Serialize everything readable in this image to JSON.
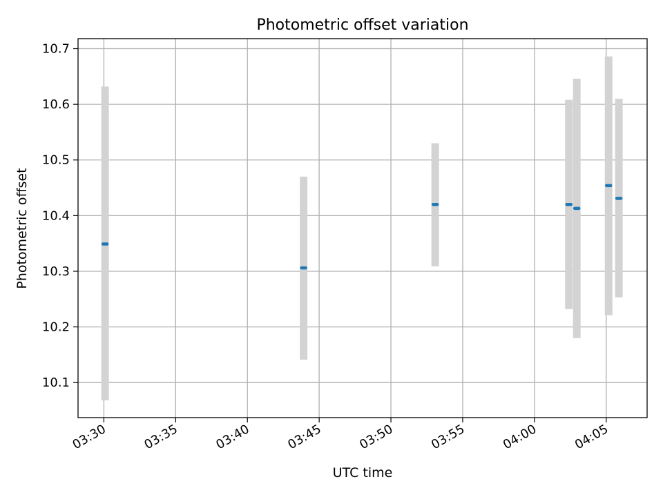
{
  "chart_data": {
    "type": "scatter",
    "title": "Photometric offset variation",
    "xlabel": "UTC time",
    "ylabel": "Photometric offset",
    "x_ticks": [
      "03:30",
      "03:35",
      "03:40",
      "03:45",
      "03:50",
      "03:55",
      "04:00",
      "04:05"
    ],
    "y_ticks": [
      "10.1",
      "10.2",
      "10.3",
      "10.4",
      "10.5",
      "10.6",
      "10.7"
    ],
    "xlim": [
      "03:28:12",
      "04:07:51"
    ],
    "ylim": [
      10.037,
      10.718
    ],
    "grid": true,
    "series": [
      {
        "color": "#1f77b4",
        "errorbar_color": "#d3d3d3",
        "points": [
          {
            "time": "03:30:05",
            "value": 10.349,
            "lower": 10.068,
            "upper": 10.632
          },
          {
            "time": "03:43:55",
            "value": 10.306,
            "lower": 10.141,
            "upper": 10.47
          },
          {
            "time": "03:53:05",
            "value": 10.42,
            "lower": 10.309,
            "upper": 10.53
          },
          {
            "time": "04:02:24",
            "value": 10.42,
            "lower": 10.232,
            "upper": 10.608
          },
          {
            "time": "04:02:57",
            "value": 10.413,
            "lower": 10.18,
            "upper": 10.646
          },
          {
            "time": "04:05:10",
            "value": 10.454,
            "lower": 10.221,
            "upper": 10.686
          },
          {
            "time": "04:05:53",
            "value": 10.431,
            "lower": 10.253,
            "upper": 10.61
          }
        ]
      }
    ]
  }
}
